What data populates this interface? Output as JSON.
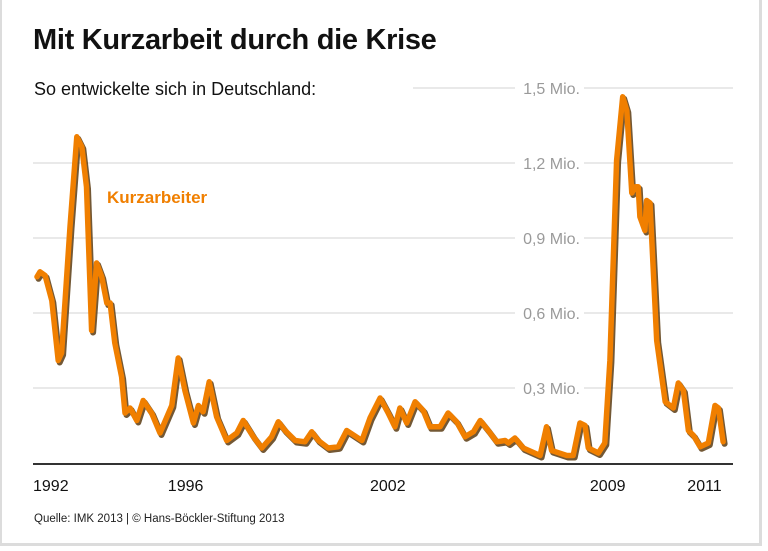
{
  "title": "Mit Kurzarbeit durch die Krise",
  "subtitle": "So entwickelte sich in Deutschland:",
  "footer": "Quelle: IMK 2013 | © Hans-Böckler-Stiftung 2013",
  "colors": {
    "line": "#f07f00",
    "shadow": "#5b3b12",
    "grid": "#e2e2e2",
    "ytick": "#9a9a9a",
    "axis": "#333333"
  },
  "chart_data": {
    "type": "line",
    "title": "Mit Kurzarbeit durch die Krise",
    "subtitle": "So entwickelte sich in Deutschland:",
    "xlabel": "",
    "ylabel": "",
    "ylim": [
      0,
      1.5
    ],
    "xlim": [
      1992,
      2012.4
    ],
    "grid": true,
    "yticks": [
      {
        "value": 0.3,
        "label": "0,3 Mio."
      },
      {
        "value": 0.6,
        "label": "0,6 Mio."
      },
      {
        "value": 0.9,
        "label": "0,9 Mio."
      },
      {
        "value": 1.2,
        "label": "1,2 Mio."
      },
      {
        "value": 1.5,
        "label": "1,5 Mio."
      }
    ],
    "xticks": [
      {
        "value": 1992,
        "label": "1992"
      },
      {
        "value": 1996,
        "label": "1996"
      },
      {
        "value": 2002,
        "label": "2002"
      },
      {
        "value": 2009,
        "label": "2009"
      },
      {
        "value": 2011,
        "label": "2011"
      }
    ],
    "series": [
      {
        "name": "Kurzarbeiter",
        "unit": "Mio.",
        "x": [
          1992.0,
          1992.09,
          1992.24,
          1992.44,
          1992.63,
          1992.73,
          1992.98,
          1993.18,
          1993.33,
          1993.47,
          1993.62,
          1993.77,
          1993.92,
          1994.07,
          1994.17,
          1994.31,
          1994.51,
          1994.61,
          1994.76,
          1994.96,
          1995.15,
          1995.4,
          1995.65,
          1996.0,
          1996.19,
          1996.39,
          1996.64,
          1996.79,
          1996.93,
          1997.11,
          1997.33,
          1997.63,
          1997.93,
          1998.12,
          1998.42,
          1998.67,
          1998.96,
          1999.16,
          1999.36,
          1999.66,
          1999.95,
          2000.15,
          2000.35,
          2000.64,
          2000.94,
          2001.19,
          2001.64,
          2001.88,
          2002.18,
          2002.42,
          2002.62,
          2002.77,
          2002.97,
          2003.22,
          2003.46,
          2003.66,
          2003.96,
          2004.2,
          2004.45,
          2004.7,
          2004.95,
          2005.15,
          2005.39,
          2005.64,
          2005.89,
          2005.99,
          2006.18,
          2006.43,
          2006.93,
          2007.12,
          2007.27,
          2007.72,
          2007.91,
          2008.11,
          2008.26,
          2008.36,
          2008.66,
          2008.85,
          2009.0,
          2009.2,
          2009.38,
          2009.5,
          2009.65,
          2009.75,
          2009.84,
          2009.89,
          2010.04,
          2010.09,
          2010.19,
          2010.39,
          2010.64,
          2010.88,
          2011.03,
          2011.18,
          2011.33,
          2011.48,
          2011.68,
          2011.92,
          2012.12,
          2012.22,
          2012.36
        ],
        "values": [
          0.745,
          0.765,
          0.75,
          0.65,
          0.41,
          0.44,
          0.945,
          1.305,
          1.265,
          1.105,
          0.53,
          0.8,
          0.745,
          0.64,
          0.64,
          0.48,
          0.345,
          0.2,
          0.22,
          0.17,
          0.25,
          0.2,
          0.12,
          0.23,
          0.42,
          0.29,
          0.16,
          0.23,
          0.205,
          0.325,
          0.185,
          0.09,
          0.12,
          0.17,
          0.105,
          0.06,
          0.105,
          0.165,
          0.13,
          0.09,
          0.085,
          0.125,
          0.09,
          0.06,
          0.065,
          0.13,
          0.09,
          0.18,
          0.26,
          0.2,
          0.145,
          0.22,
          0.16,
          0.245,
          0.21,
          0.145,
          0.145,
          0.2,
          0.165,
          0.105,
          0.125,
          0.17,
          0.13,
          0.085,
          0.09,
          0.08,
          0.1,
          0.06,
          0.03,
          0.145,
          0.05,
          0.03,
          0.03,
          0.16,
          0.15,
          0.06,
          0.04,
          0.08,
          0.41,
          1.21,
          1.465,
          1.41,
          1.08,
          1.105,
          1.105,
          0.985,
          0.93,
          1.05,
          1.04,
          0.49,
          0.245,
          0.22,
          0.32,
          0.29,
          0.13,
          0.11,
          0.065,
          0.08,
          0.23,
          0.22,
          0.085
        ]
      }
    ],
    "legend": "inline-label"
  }
}
